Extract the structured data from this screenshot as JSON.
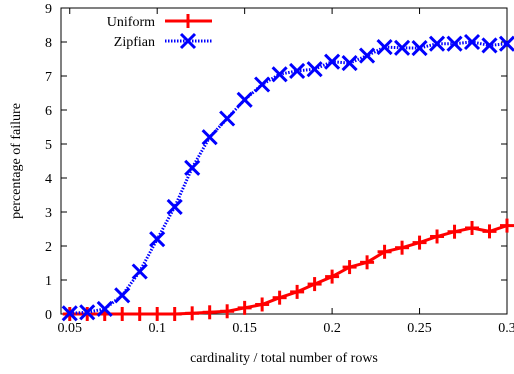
{
  "chart_data": {
    "type": "line",
    "xlabel": "cardinality / total number of rows",
    "ylabel": "percentage of failure",
    "xlim": [
      0.045,
      0.3
    ],
    "ylim": [
      0,
      9
    ],
    "xticks": [
      0.05,
      0.1,
      0.15,
      0.2,
      0.25,
      0.3
    ],
    "xtick_labels": [
      "0.05",
      "0.1",
      "0.15",
      "0.2",
      "0.25",
      "0.3"
    ],
    "yticks": [
      0,
      1,
      2,
      3,
      4,
      5,
      6,
      7,
      8,
      9
    ],
    "ytick_labels": [
      "0",
      "1",
      "2",
      "3",
      "4",
      "5",
      "6",
      "7",
      "8",
      "9"
    ],
    "grid": false,
    "legend_position": "top-left",
    "series": [
      {
        "name": "Uniform",
        "color": "#ff0000",
        "marker": "plus",
        "line": "solid",
        "x": [
          0.05,
          0.06,
          0.07,
          0.08,
          0.09,
          0.1,
          0.11,
          0.12,
          0.13,
          0.14,
          0.15,
          0.16,
          0.17,
          0.18,
          0.19,
          0.2,
          0.21,
          0.22,
          0.23,
          0.24,
          0.25,
          0.26,
          0.27,
          0.28,
          0.29,
          0.3
        ],
        "y": [
          0.0,
          0.0,
          0.0,
          0.0,
          0.0,
          0.0,
          0.0,
          0.02,
          0.05,
          0.08,
          0.18,
          0.28,
          0.48,
          0.65,
          0.88,
          1.1,
          1.38,
          1.52,
          1.83,
          1.95,
          2.1,
          2.28,
          2.42,
          2.53,
          2.43,
          2.6
        ]
      },
      {
        "name": "Zipfian",
        "color": "#0000ff",
        "marker": "x",
        "line": "dotted",
        "x": [
          0.05,
          0.06,
          0.07,
          0.08,
          0.09,
          0.1,
          0.11,
          0.12,
          0.13,
          0.14,
          0.15,
          0.16,
          0.17,
          0.18,
          0.19,
          0.2,
          0.21,
          0.22,
          0.23,
          0.24,
          0.25,
          0.26,
          0.27,
          0.28,
          0.29,
          0.3
        ],
        "y": [
          0.02,
          0.05,
          0.15,
          0.55,
          1.25,
          2.2,
          3.15,
          4.3,
          5.2,
          5.75,
          6.3,
          6.75,
          7.05,
          7.15,
          7.2,
          7.42,
          7.38,
          7.6,
          7.85,
          7.83,
          7.82,
          7.95,
          7.95,
          8.0,
          7.9,
          7.95
        ]
      }
    ]
  }
}
